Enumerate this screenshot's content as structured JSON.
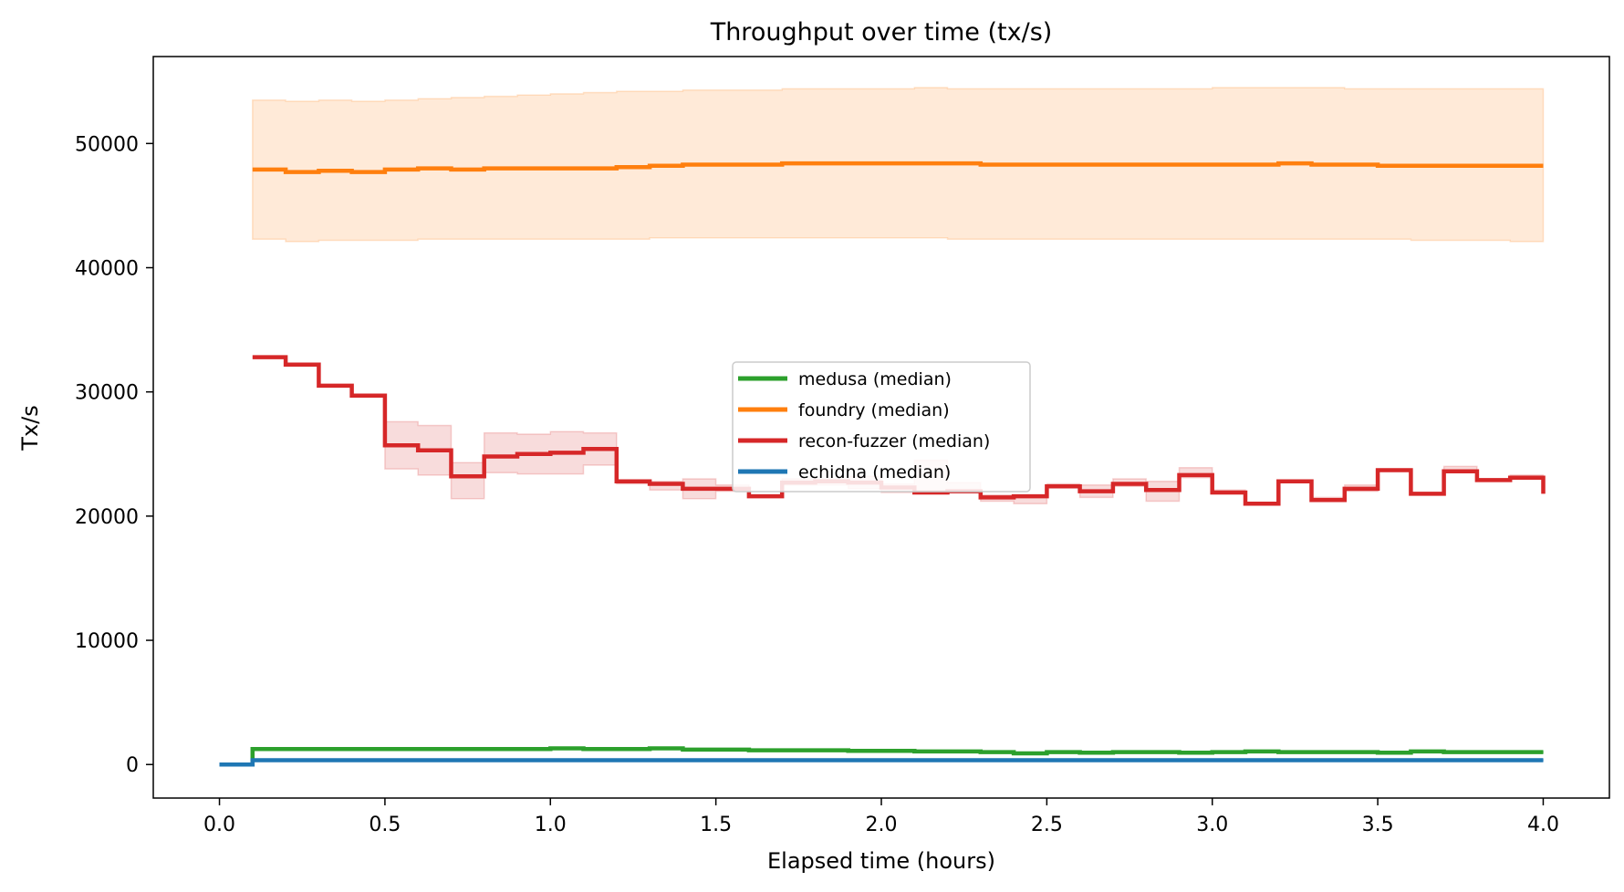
{
  "chart_data": {
    "type": "line",
    "title": "Throughput over time (tx/s)",
    "xlabel": "Elapsed time (hours)",
    "ylabel": "Tx/s",
    "xlim": [
      -0.2,
      4.2
    ],
    "ylim": [
      -2700,
      57000
    ],
    "xticks": [
      0.0,
      0.5,
      1.0,
      1.5,
      2.0,
      2.5,
      3.0,
      3.5,
      4.0
    ],
    "xtick_labels": [
      "0.0",
      "0.5",
      "1.0",
      "1.5",
      "2.0",
      "2.5",
      "3.0",
      "3.5",
      "4.0"
    ],
    "yticks": [
      0,
      10000,
      20000,
      30000,
      40000,
      50000
    ],
    "ytick_labels": [
      "0",
      "10000",
      "20000",
      "30000",
      "40000",
      "50000"
    ],
    "grid": false,
    "legend_position": "center",
    "x": [
      0.0,
      0.1,
      0.2,
      0.3,
      0.4,
      0.5,
      0.6,
      0.7,
      0.8,
      0.9,
      1.0,
      1.1,
      1.2,
      1.3,
      1.4,
      1.5,
      1.6,
      1.7,
      1.8,
      1.9,
      2.0,
      2.1,
      2.2,
      2.3,
      2.4,
      2.5,
      2.6,
      2.7,
      2.8,
      2.9,
      3.0,
      3.1,
      3.2,
      3.3,
      3.4,
      3.5,
      3.6,
      3.7,
      3.8,
      3.9,
      4.0
    ],
    "series": [
      {
        "name": "medusa (median)",
        "color": "#2ca02c",
        "band_color": "#2ca02c",
        "values": [
          0,
          1250,
          1250,
          1250,
          1250,
          1250,
          1250,
          1250,
          1250,
          1250,
          1300,
          1250,
          1250,
          1300,
          1200,
          1200,
          1150,
          1150,
          1150,
          1100,
          1100,
          1050,
          1050,
          1000,
          900,
          1000,
          950,
          1000,
          1000,
          950,
          1000,
          1050,
          1000,
          1000,
          1000,
          950,
          1050,
          1000,
          1000,
          1000,
          1000
        ],
        "lower": [
          0,
          1200,
          1200,
          1200,
          1200,
          1200,
          1200,
          1200,
          1200,
          1200,
          1250,
          1200,
          1200,
          1250,
          1150,
          1150,
          1100,
          1100,
          1100,
          1050,
          1050,
          1000,
          1000,
          950,
          850,
          950,
          900,
          950,
          950,
          900,
          950,
          1000,
          950,
          950,
          950,
          900,
          1000,
          950,
          950,
          950,
          950
        ],
        "upper": [
          0,
          1300,
          1300,
          1300,
          1300,
          1300,
          1300,
          1300,
          1300,
          1300,
          1350,
          1300,
          1300,
          1350,
          1250,
          1250,
          1200,
          1200,
          1200,
          1150,
          1150,
          1100,
          1100,
          1050,
          950,
          1050,
          1000,
          1050,
          1050,
          1000,
          1050,
          1100,
          1050,
          1050,
          1050,
          1000,
          1100,
          1050,
          1050,
          1050,
          1050
        ]
      },
      {
        "name": "foundry (median)",
        "color": "#ff7f0e",
        "band_color": "#ff7f0e",
        "values": [
          null,
          47900,
          47700,
          47800,
          47700,
          47900,
          48000,
          47900,
          48000,
          48000,
          48000,
          48000,
          48100,
          48200,
          48300,
          48300,
          48300,
          48400,
          48400,
          48400,
          48400,
          48400,
          48400,
          48300,
          48300,
          48300,
          48300,
          48300,
          48300,
          48300,
          48300,
          48300,
          48400,
          48300,
          48300,
          48200,
          48200,
          48200,
          48200,
          48200,
          48200
        ],
        "lower": [
          null,
          42300,
          42100,
          42200,
          42200,
          42200,
          42300,
          42300,
          42300,
          42300,
          42300,
          42300,
          42300,
          42400,
          42400,
          42400,
          42400,
          42400,
          42400,
          42400,
          42400,
          42400,
          42300,
          42300,
          42300,
          42300,
          42300,
          42300,
          42300,
          42300,
          42300,
          42300,
          42300,
          42300,
          42300,
          42300,
          42200,
          42200,
          42200,
          42100,
          42100
        ],
        "upper": [
          null,
          53500,
          53400,
          53500,
          53400,
          53500,
          53600,
          53700,
          53800,
          53900,
          54000,
          54100,
          54200,
          54200,
          54300,
          54300,
          54300,
          54400,
          54400,
          54400,
          54400,
          54500,
          54400,
          54400,
          54400,
          54400,
          54400,
          54400,
          54400,
          54400,
          54500,
          54500,
          54500,
          54500,
          54400,
          54400,
          54400,
          54400,
          54400,
          54400,
          54400
        ]
      },
      {
        "name": "recon-fuzzer (median)",
        "color": "#d62728",
        "band_color": "#d62728",
        "values": [
          null,
          32800,
          32200,
          30500,
          29700,
          25700,
          25300,
          23200,
          24800,
          25000,
          25100,
          25400,
          22800,
          22600,
          22200,
          22200,
          21600,
          22700,
          22800,
          22700,
          22300,
          21900,
          22000,
          21500,
          21600,
          22400,
          22000,
          22600,
          22100,
          23300,
          21900,
          21000,
          22800,
          21300,
          22200,
          23700,
          21800,
          23600,
          22900,
          23100,
          21800
        ],
        "lower": [
          null,
          32800,
          32200,
          30500,
          29700,
          23800,
          23300,
          21400,
          23500,
          23400,
          23400,
          24100,
          22600,
          22100,
          21400,
          22000,
          21500,
          22500,
          22500,
          22200,
          21900,
          21800,
          21900,
          21200,
          21000,
          22300,
          21500,
          22400,
          21200,
          23100,
          21800,
          21000,
          22700,
          21200,
          22000,
          23600,
          21800,
          23600,
          22800,
          23000,
          21800
        ],
        "upper": [
          null,
          32800,
          32200,
          30500,
          29700,
          27600,
          27300,
          24300,
          26700,
          26600,
          26800,
          26700,
          22800,
          22800,
          23000,
          22500,
          21700,
          23000,
          23000,
          23200,
          22600,
          24500,
          22700,
          21700,
          21700,
          22600,
          22500,
          23000,
          22800,
          23900,
          22100,
          21100,
          22900,
          21500,
          22500,
          23800,
          21900,
          24000,
          23000,
          23300,
          22000
        ]
      },
      {
        "name": "echidna (median)",
        "color": "#1f77b4",
        "band_color": "#1f77b4",
        "values": [
          0,
          350,
          350,
          350,
          350,
          350,
          350,
          350,
          350,
          350,
          350,
          350,
          350,
          350,
          350,
          350,
          350,
          350,
          350,
          350,
          350,
          350,
          350,
          350,
          350,
          350,
          350,
          350,
          350,
          350,
          350,
          350,
          350,
          350,
          350,
          350,
          350,
          350,
          350,
          350,
          350
        ],
        "lower": [
          0,
          320,
          320,
          320,
          320,
          320,
          320,
          320,
          320,
          320,
          320,
          320,
          320,
          320,
          320,
          320,
          320,
          320,
          320,
          320,
          320,
          320,
          320,
          320,
          320,
          320,
          320,
          320,
          320,
          320,
          320,
          320,
          320,
          320,
          320,
          320,
          320,
          320,
          320,
          320,
          320
        ],
        "upper": [
          0,
          380,
          380,
          380,
          380,
          380,
          380,
          380,
          380,
          380,
          380,
          380,
          380,
          380,
          380,
          380,
          380,
          380,
          380,
          380,
          380,
          380,
          380,
          380,
          380,
          380,
          380,
          380,
          380,
          380,
          380,
          380,
          380,
          380,
          380,
          380,
          380,
          380,
          380,
          380,
          380
        ]
      }
    ],
    "legend_order": [
      "medusa (median)",
      "foundry (median)",
      "recon-fuzzer (median)",
      "echidna (median)"
    ]
  }
}
